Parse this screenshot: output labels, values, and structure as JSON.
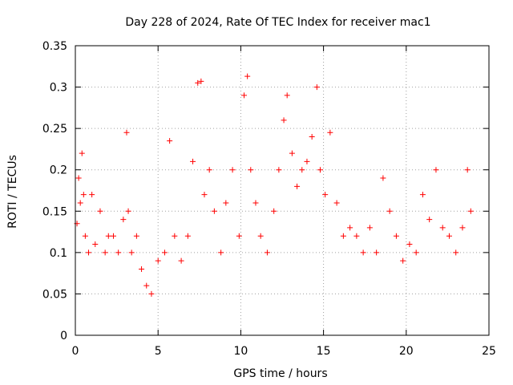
{
  "chart_data": {
    "type": "scatter",
    "title": "Day 228 of 2024, Rate Of TEC Index for receiver mac1",
    "xlabel": "GPS time / hours",
    "ylabel": "ROTI / TECUs",
    "xlim": [
      0,
      25
    ],
    "ylim": [
      0,
      0.35
    ],
    "x_ticks": [
      "0",
      "5",
      "10",
      "15",
      "20",
      "25"
    ],
    "y_ticks": [
      "0",
      "0.05",
      "0.1",
      "0.15",
      "0.2",
      "0.25",
      "0.3",
      "0.35"
    ],
    "grid": true,
    "marker": "+",
    "color": "#ff0000",
    "series": [
      {
        "x": [
          0.1,
          0.2,
          0.3,
          0.4,
          0.5,
          0.6,
          0.8,
          1.0,
          1.2,
          1.5,
          1.8,
          2.0,
          2.3,
          2.6,
          2.9,
          3.1,
          3.2,
          3.4,
          3.7,
          4.0,
          4.3,
          4.6,
          5.0,
          5.4,
          5.7,
          6.0,
          6.4,
          6.8,
          7.1,
          7.4,
          7.6,
          7.8,
          8.1,
          8.4,
          8.8,
          9.1,
          9.5,
          9.9,
          10.2,
          10.4,
          10.6,
          10.9,
          11.2,
          11.6,
          12.0,
          12.3,
          12.6,
          12.8,
          13.1,
          13.4,
          13.7,
          14.0,
          14.3,
          14.6,
          14.8,
          15.1,
          15.4,
          15.8,
          16.2,
          16.6,
          17.0,
          17.4,
          17.8,
          18.2,
          18.6,
          19.0,
          19.4,
          19.8,
          20.2,
          20.6,
          21.0,
          21.4,
          21.8,
          22.2,
          22.6,
          23.0,
          23.4,
          23.7,
          23.9
        ],
        "y": [
          0.135,
          0.19,
          0.16,
          0.22,
          0.17,
          0.12,
          0.1,
          0.17,
          0.11,
          0.15,
          0.1,
          0.12,
          0.12,
          0.1,
          0.14,
          0.245,
          0.15,
          0.1,
          0.12,
          0.08,
          0.06,
          0.05,
          0.09,
          0.1,
          0.235,
          0.12,
          0.09,
          0.12,
          0.21,
          0.305,
          0.307,
          0.17,
          0.2,
          0.15,
          0.1,
          0.16,
          0.2,
          0.12,
          0.29,
          0.313,
          0.2,
          0.16,
          0.12,
          0.1,
          0.15,
          0.2,
          0.26,
          0.29,
          0.22,
          0.18,
          0.2,
          0.21,
          0.24,
          0.3,
          0.2,
          0.17,
          0.245,
          0.16,
          0.12,
          0.13,
          0.12,
          0.1,
          0.13,
          0.1,
          0.19,
          0.15,
          0.12,
          0.09,
          0.11,
          0.1,
          0.17,
          0.14,
          0.2,
          0.13,
          0.12,
          0.1,
          0.13,
          0.2,
          0.15
        ]
      }
    ]
  }
}
